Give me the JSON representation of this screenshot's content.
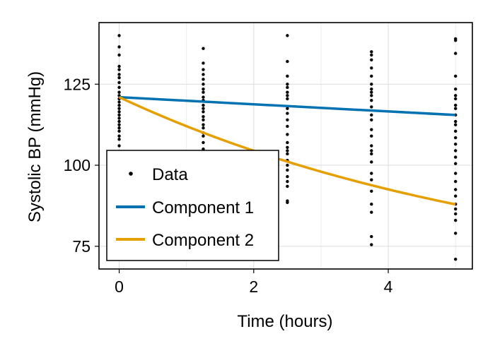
{
  "chart_data": {
    "type": "scatter+line",
    "xlabel": "Time (hours)",
    "ylabel": "Systolic BP (mmHg)",
    "xlim": [
      -0.3,
      5.25
    ],
    "ylim": [
      68,
      144
    ],
    "x_ticks": [
      0,
      2,
      4
    ],
    "y_ticks": [
      75,
      100,
      125
    ],
    "grid": true,
    "legend_position": "bottom-left",
    "colors": {
      "data": "#000000",
      "component1": "#0072b2",
      "component2": "#e69f00"
    },
    "scatter": {
      "name": "Data",
      "groups": [
        {
          "x": 0,
          "y": [
            140,
            136.5,
            134,
            130.5,
            129.5,
            128,
            127,
            125.5,
            124,
            122.5,
            121.5,
            120.5,
            119.5,
            118.5,
            117.5,
            116.5,
            115.5,
            114.5,
            113.5,
            112.5,
            111.5,
            110.5,
            109,
            108,
            106
          ]
        },
        {
          "x": 1.25,
          "y": [
            136,
            131.5,
            129.5,
            128,
            126.5,
            125,
            123.5,
            122.5,
            121,
            120,
            118.5,
            117.5,
            116.5,
            115,
            114,
            112.5,
            111.5,
            110,
            109,
            107,
            105
          ]
        },
        {
          "x": 2.5,
          "y": [
            140,
            132,
            127.5,
            125,
            124,
            122.5,
            121.5,
            120.5,
            117.5,
            116,
            114,
            112,
            109.5,
            107,
            105.5,
            104.5,
            103.5,
            101.5,
            100,
            98.5,
            96.5,
            95,
            93.5,
            89,
            88.5
          ]
        },
        {
          "x": 3.75,
          "y": [
            135,
            134,
            132.5,
            130,
            127.5,
            125,
            123.5,
            122.5,
            121.5,
            120,
            118,
            115.5,
            114,
            111,
            109,
            106,
            104.5,
            103.5,
            101,
            97.5,
            95.5,
            92,
            88,
            85.5,
            78,
            75.5
          ]
        },
        {
          "x": 5,
          "y": [
            139,
            138.5,
            134.5,
            127.5,
            123.5,
            121.5,
            120.5,
            118.5,
            117.5,
            115.5,
            113.5,
            112.5,
            110.5,
            108.5,
            106.5,
            104.5,
            102.5,
            100.5,
            97.5,
            95,
            92.5,
            90.5,
            88,
            86.5,
            85,
            83,
            79,
            71
          ]
        }
      ]
    },
    "series": [
      {
        "name": "Component 1",
        "type": "line",
        "x0": 0,
        "y0": 121,
        "x1": 5,
        "y1": 115.5
      },
      {
        "name": "Component 2",
        "type": "line",
        "x0": 0,
        "y0": 121,
        "asymptote": 62,
        "decay": 0.1645,
        "x1": 5
      }
    ],
    "legend": {
      "entries": [
        "Data",
        "Component 1",
        "Component 2"
      ]
    }
  }
}
